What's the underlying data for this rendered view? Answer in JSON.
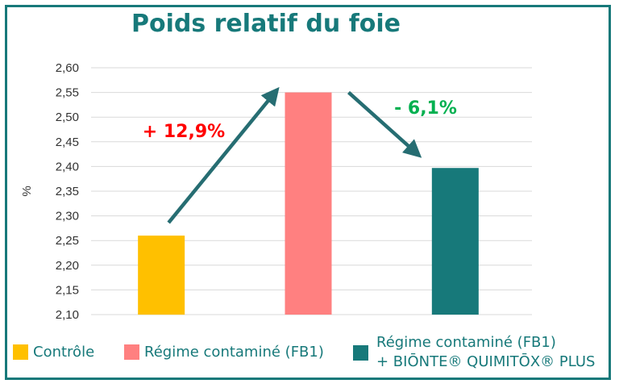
{
  "chart_data": {
    "type": "bar",
    "title": "Poids relatif du foie",
    "ylabel": "%",
    "ylim": [
      2.1,
      2.6
    ],
    "yticks": [
      "2,10",
      "2,15",
      "2,20",
      "2,25",
      "2,30",
      "2,35",
      "2,40",
      "2,45",
      "2,50",
      "2,55",
      "2,60"
    ],
    "categories": [
      "Contrôle",
      "Régime contaminé (FB1)",
      "Régime contaminé (FB1) + BIŌNTE® QUIMITŌX® PLUS"
    ],
    "values": [
      2.26,
      2.55,
      2.397
    ],
    "colors": [
      "#ffc000",
      "#ff8080",
      "#17797a"
    ],
    "grid": true,
    "annotations": [
      {
        "text": "+ 12,9%",
        "color": "#ff0000"
      },
      {
        "text": "- 6,1%",
        "color": "#00b050"
      }
    ],
    "legend": {
      "position": "bottom",
      "items": [
        {
          "label": "Contrôle"
        },
        {
          "label": "Régime contaminé (FB1)"
        },
        {
          "label_line1": "Régime contaminé (FB1)",
          "label_line2": "+ BIŌNTE® QUIMITŌX® PLUS"
        }
      ]
    },
    "arrow_color": "#266d72"
  }
}
